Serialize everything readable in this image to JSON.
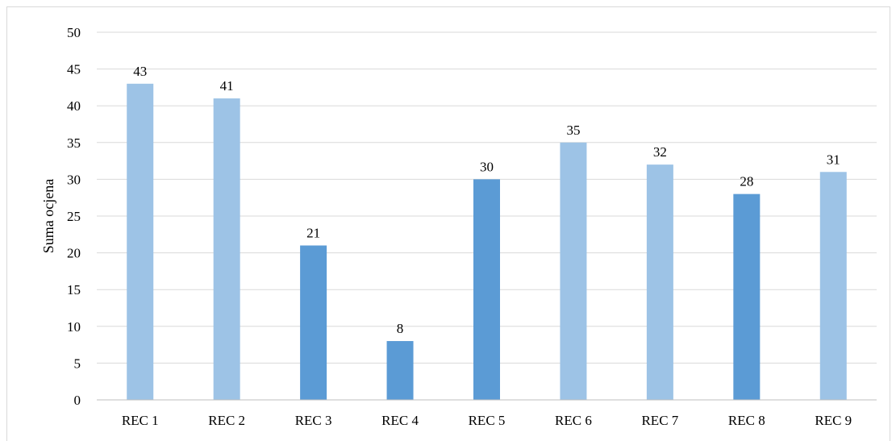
{
  "chart_data": {
    "type": "bar",
    "categories": [
      "REC 1",
      "REC 2",
      "REC 3",
      "REC 4",
      "REC 5",
      "REC 6",
      "REC 7",
      "REC 8",
      "REC 9"
    ],
    "values": [
      43,
      41,
      21,
      8,
      30,
      35,
      32,
      28,
      31
    ],
    "bar_colors": [
      "#9dc3e6",
      "#9dc3e6",
      "#5b9bd5",
      "#5b9bd5",
      "#5b9bd5",
      "#9dc3e6",
      "#9dc3e6",
      "#5b9bd5",
      "#9dc3e6"
    ],
    "data_labels": [
      "43",
      "41",
      "21",
      "8",
      "30",
      "35",
      "32",
      "28",
      "31"
    ],
    "title": "",
    "xlabel": "",
    "ylabel": "Suma ocjena",
    "ylim": [
      0,
      50
    ],
    "yticks": [
      "0",
      "5",
      "10",
      "15",
      "20",
      "25",
      "30",
      "35",
      "40",
      "45",
      "50"
    ],
    "grid": true,
    "legend": "none",
    "gridline_color": "#d9d9d9",
    "axis_color": "#bfbfbf"
  }
}
